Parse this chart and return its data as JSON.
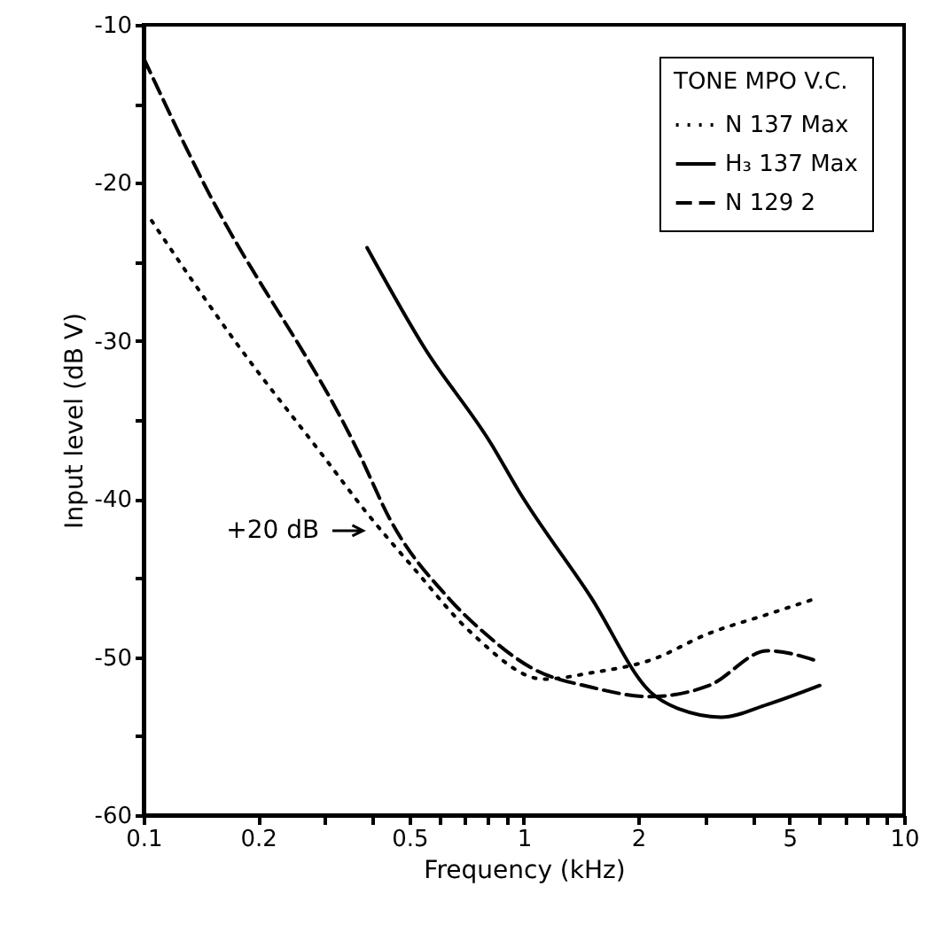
{
  "chart_data": {
    "type": "line",
    "xlabel": "Frequency (kHz)",
    "ylabel": "Input level (dB V)",
    "legend_title": "TONE MPO V.C.",
    "legend": "top right",
    "grid": false,
    "log": "x",
    "xlim": [
      0.1,
      10
    ],
    "xticks": [
      0.1,
      0.2,
      {
        "value": 0.3,
        "label": null
      },
      {
        "value": 0.4,
        "label": null
      },
      0.5,
      {
        "value": 0.6,
        "label": null
      },
      {
        "value": 0.7,
        "label": null
      },
      {
        "value": 0.8,
        "label": null
      },
      {
        "value": 0.9,
        "label": null
      },
      1,
      2,
      {
        "value": 3,
        "label": null
      },
      {
        "value": 4,
        "label": null
      },
      5,
      {
        "value": 6,
        "label": null
      },
      {
        "value": 7,
        "label": null
      },
      {
        "value": 8,
        "label": null
      },
      {
        "value": 9,
        "label": null
      },
      10
    ],
    "ylim": [
      -60,
      -10
    ],
    "yticks": [
      -60,
      {
        "value": -55,
        "label": null
      },
      -50,
      {
        "value": -45,
        "label": null
      },
      -40,
      {
        "value": -35,
        "label": null
      },
      -30,
      {
        "value": -25,
        "label": null
      },
      -20,
      {
        "value": -15,
        "label": null
      },
      -10
    ],
    "annotations": [
      {
        "text": "+20 dB",
        "x": 0.4,
        "y": -42
      }
    ],
    "series": [
      {
        "name": "N 137 Max",
        "color": "#000000",
        "line_style": "dotted",
        "x": [
          0.105,
          0.175,
          0.295,
          0.387,
          0.51,
          0.73,
          1.13,
          1.5,
          2.15,
          3.07,
          4.37,
          5.85
        ],
        "values": [
          -22.4,
          -30.1,
          -37.2,
          -40.9,
          -44.3,
          -48.5,
          -51.4,
          -51.0,
          -50.2,
          -48.5,
          -47.3,
          -46.3
        ]
      },
      {
        "name": "H₃ 137 Max",
        "color": "#000000",
        "line_style": "solid",
        "x": [
          0.387,
          0.55,
          0.82,
          0.97,
          1.5,
          2.15,
          2.57,
          3.3,
          4.37,
          6.0
        ],
        "values": [
          -24.1,
          -30.5,
          -36.5,
          -39.5,
          -46.2,
          -52.2,
          -53.3,
          -53.8,
          -53.0,
          -51.8
        ]
      },
      {
        "name": "N 129 2",
        "color": "#000000",
        "line_style": "dashed",
        "x": [
          0.1,
          0.141,
          0.37,
          0.445,
          0.63,
          0.79,
          1.05,
          1.5,
          2.15,
          3.07,
          4.37,
          6.0
        ],
        "values": [
          -12.1,
          -19.6,
          -37.2,
          -41.3,
          -46.2,
          -48.5,
          -50.7,
          -51.9,
          -52.5,
          -51.8,
          -49.6,
          -50.3
        ]
      }
    ]
  }
}
